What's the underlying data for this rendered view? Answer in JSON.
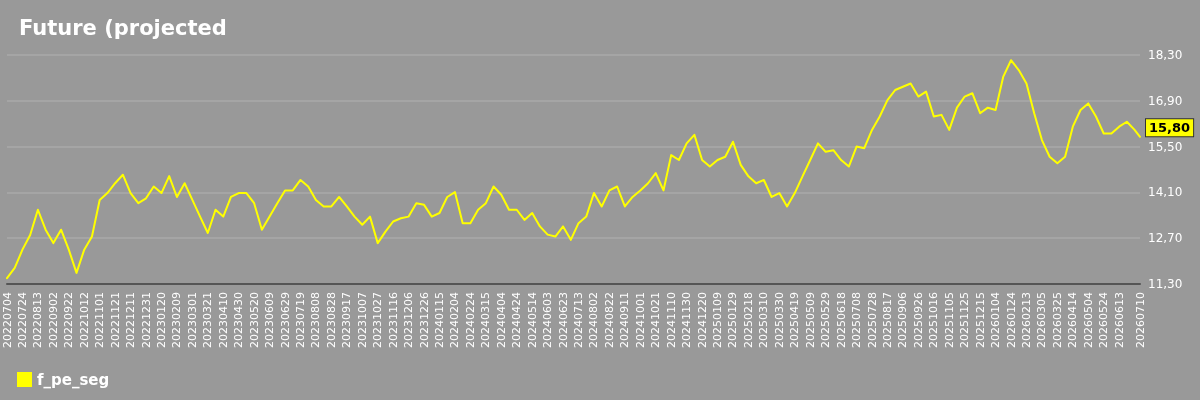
{
  "chart_data": {
    "type": "line",
    "title": "Future (projected",
    "legend": "bottom left",
    "grid": "y",
    "marker": "none",
    "line_style": "solid",
    "xlim": [
      "2022-07-04",
      "2026-07-10"
    ],
    "ylim": [
      11.3,
      18.3
    ],
    "yticks": [
      {
        "value": 11.3,
        "label": "11,30"
      },
      {
        "value": 12.7,
        "label": "12,70"
      },
      {
        "value": 14.1,
        "label": "14,10"
      },
      {
        "value": 15.5,
        "label": "15,50"
      },
      {
        "value": 16.9,
        "label": "16,90"
      },
      {
        "value": 18.3,
        "label": "18,30"
      }
    ],
    "xticks": [
      {
        "value": "2022-07-04",
        "label": "20220704"
      },
      {
        "value": "2022-07-24",
        "label": "20220724"
      },
      {
        "value": "2022-08-13",
        "label": "20220813"
      },
      {
        "value": "2022-09-02",
        "label": "20220902"
      },
      {
        "value": "2022-09-22",
        "label": "20220922"
      },
      {
        "value": "2022-10-12",
        "label": "20221012"
      },
      {
        "value": "2022-11-01",
        "label": "20221101"
      },
      {
        "value": "2022-11-21",
        "label": "20221121"
      },
      {
        "value": "2022-12-11",
        "label": "20221211"
      },
      {
        "value": "2022-12-31",
        "label": "20221231"
      },
      {
        "value": "2023-01-20",
        "label": "20230120"
      },
      {
        "value": "2023-02-09",
        "label": "20230209"
      },
      {
        "value": "2023-03-01",
        "label": "20230301"
      },
      {
        "value": "2023-03-21",
        "label": "20230321"
      },
      {
        "value": "2023-04-10",
        "label": "20230410"
      },
      {
        "value": "2023-04-30",
        "label": "20230430"
      },
      {
        "value": "2023-05-20",
        "label": "20230520"
      },
      {
        "value": "2023-06-09",
        "label": "20230609"
      },
      {
        "value": "2023-06-29",
        "label": "20230629"
      },
      {
        "value": "2023-07-19",
        "label": "20230719"
      },
      {
        "value": "2023-08-08",
        "label": "20230808"
      },
      {
        "value": "2023-08-28",
        "label": "20230828"
      },
      {
        "value": "2023-09-17",
        "label": "20230917"
      },
      {
        "value": "2023-10-07",
        "label": "20231007"
      },
      {
        "value": "2023-10-27",
        "label": "20231027"
      },
      {
        "value": "2023-11-16",
        "label": "20231116"
      },
      {
        "value": "2023-12-06",
        "label": "20231206"
      },
      {
        "value": "2023-12-26",
        "label": "20231226"
      },
      {
        "value": "2024-01-15",
        "label": "20240115"
      },
      {
        "value": "2024-02-04",
        "label": "20240204"
      },
      {
        "value": "2024-02-24",
        "label": "20240224"
      },
      {
        "value": "2024-03-15",
        "label": "20240315"
      },
      {
        "value": "2024-04-04",
        "label": "20240404"
      },
      {
        "value": "2024-04-24",
        "label": "20240424"
      },
      {
        "value": "2024-05-14",
        "label": "20240514"
      },
      {
        "value": "2024-06-03",
        "label": "20240603"
      },
      {
        "value": "2024-06-23",
        "label": "20240623"
      },
      {
        "value": "2024-07-13",
        "label": "20240713"
      },
      {
        "value": "2024-08-02",
        "label": "20240802"
      },
      {
        "value": "2024-08-22",
        "label": "20240822"
      },
      {
        "value": "2024-09-11",
        "label": "20240911"
      },
      {
        "value": "2024-10-01",
        "label": "20241001"
      },
      {
        "value": "2024-10-21",
        "label": "20241021"
      },
      {
        "value": "2024-11-10",
        "label": "20241110"
      },
      {
        "value": "2024-11-30",
        "label": "20241130"
      },
      {
        "value": "2024-12-20",
        "label": "20241220"
      },
      {
        "value": "2025-01-09",
        "label": "20250109"
      },
      {
        "value": "2025-01-29",
        "label": "20250129"
      },
      {
        "value": "2025-02-18",
        "label": "20250218"
      },
      {
        "value": "2025-03-10",
        "label": "20250310"
      },
      {
        "value": "2025-03-30",
        "label": "20250330"
      },
      {
        "value": "2025-04-19",
        "label": "20250419"
      },
      {
        "value": "2025-05-09",
        "label": "20250509"
      },
      {
        "value": "2025-05-29",
        "label": "20250529"
      },
      {
        "value": "2025-06-18",
        "label": "20250618"
      },
      {
        "value": "2025-07-08",
        "label": "20250708"
      },
      {
        "value": "2025-07-28",
        "label": "20250728"
      },
      {
        "value": "2025-08-17",
        "label": "20250817"
      },
      {
        "value": "2025-09-06",
        "label": "20250906"
      },
      {
        "value": "2025-09-26",
        "label": "20250926"
      },
      {
        "value": "2025-10-16",
        "label": "20251016"
      },
      {
        "value": "2025-11-05",
        "label": "20251105"
      },
      {
        "value": "2025-11-25",
        "label": "20251125"
      },
      {
        "value": "2025-12-15",
        "label": "20251215"
      },
      {
        "value": "2026-01-04",
        "label": "20260104"
      },
      {
        "value": "2026-01-24",
        "label": "20260124"
      },
      {
        "value": "2026-02-13",
        "label": "20260213"
      },
      {
        "value": "2026-03-05",
        "label": "20260305"
      },
      {
        "value": "2026-03-25",
        "label": "20260325"
      },
      {
        "value": "2026-04-14",
        "label": "20260414"
      },
      {
        "value": "2026-05-04",
        "label": "20260504"
      },
      {
        "value": "2026-05-24",
        "label": "20260524"
      },
      {
        "value": "2026-06-13",
        "label": "20260613"
      },
      {
        "value": "2026-07-10",
        "label": "20260710"
      }
    ],
    "x": [
      "2022-07-04",
      "2022-07-14",
      "2022-07-24",
      "2022-08-03",
      "2022-08-13",
      "2022-08-23",
      "2022-09-02",
      "2022-09-12",
      "2022-09-22",
      "2022-10-02",
      "2022-10-12",
      "2022-10-22",
      "2022-11-01",
      "2022-11-11",
      "2022-11-21",
      "2022-12-01",
      "2022-12-11",
      "2022-12-21",
      "2022-12-31",
      "2023-01-10",
      "2023-01-20",
      "2023-01-30",
      "2023-02-09",
      "2023-02-19",
      "2023-03-01",
      "2023-03-11",
      "2023-03-21",
      "2023-03-31",
      "2023-04-10",
      "2023-04-20",
      "2023-04-30",
      "2023-05-10",
      "2023-05-20",
      "2023-05-30",
      "2023-06-09",
      "2023-06-19",
      "2023-06-29",
      "2023-07-09",
      "2023-07-19",
      "2023-07-29",
      "2023-08-08",
      "2023-08-18",
      "2023-08-28",
      "2023-09-07",
      "2023-09-17",
      "2023-09-27",
      "2023-10-07",
      "2023-10-17",
      "2023-10-27",
      "2023-11-06",
      "2023-11-16",
      "2023-11-26",
      "2023-12-06",
      "2023-12-16",
      "2023-12-26",
      "2024-01-05",
      "2024-01-15",
      "2024-01-25",
      "2024-02-04",
      "2024-02-14",
      "2024-02-24",
      "2024-03-05",
      "2024-03-15",
      "2024-03-25",
      "2024-04-04",
      "2024-04-14",
      "2024-04-24",
      "2024-05-04",
      "2024-05-14",
      "2024-05-24",
      "2024-06-03",
      "2024-06-13",
      "2024-06-23",
      "2024-07-03",
      "2024-07-13",
      "2024-07-23",
      "2024-08-02",
      "2024-08-12",
      "2024-08-22",
      "2024-09-01",
      "2024-09-11",
      "2024-09-21",
      "2024-10-01",
      "2024-10-11",
      "2024-10-21",
      "2024-10-31",
      "2024-11-10",
      "2024-11-20",
      "2024-11-30",
      "2024-12-10",
      "2024-12-20",
      "2024-12-30",
      "2025-01-09",
      "2025-01-19",
      "2025-01-29",
      "2025-02-08",
      "2025-02-18",
      "2025-02-28",
      "2025-03-10",
      "2025-03-20",
      "2025-03-30",
      "2025-04-09",
      "2025-04-19",
      "2025-04-29",
      "2025-05-09",
      "2025-05-19",
      "2025-05-29",
      "2025-06-08",
      "2025-06-18",
      "2025-06-28",
      "2025-07-08",
      "2025-07-18",
      "2025-07-28",
      "2025-08-07",
      "2025-08-17",
      "2025-08-27",
      "2025-09-06",
      "2025-09-16",
      "2025-09-26",
      "2025-10-06",
      "2025-10-16",
      "2025-10-26",
      "2025-11-05",
      "2025-11-15",
      "2025-11-25",
      "2025-12-05",
      "2025-12-15",
      "2025-12-25",
      "2026-01-04",
      "2026-01-14",
      "2026-01-24",
      "2026-02-03",
      "2026-02-13",
      "2026-02-23",
      "2026-03-05",
      "2026-03-15",
      "2026-03-25",
      "2026-04-04",
      "2026-04-14",
      "2026-04-24",
      "2026-05-04",
      "2026-05-14",
      "2026-05-24",
      "2026-06-03",
      "2026-06-13",
      "2026-06-23",
      "2026-07-03",
      "2026-07-10"
    ],
    "series": [
      {
        "name": "f_pe_seg",
        "color": "#ffff00",
        "values": [
          11.48,
          11.79,
          12.35,
          12.8,
          13.57,
          12.96,
          12.55,
          12.96,
          12.35,
          11.64,
          12.35,
          12.75,
          13.87,
          14.08,
          14.38,
          14.64,
          14.08,
          13.77,
          13.92,
          14.28,
          14.08,
          14.6,
          13.96,
          14.38,
          13.87,
          13.36,
          12.86,
          13.57,
          13.36,
          13.96,
          14.08,
          14.08,
          13.77,
          12.96,
          13.36,
          13.77,
          14.16,
          14.16,
          14.48,
          14.28,
          13.87,
          13.67,
          13.67,
          13.96,
          13.67,
          13.36,
          13.11,
          13.36,
          12.55,
          12.9,
          13.21,
          13.31,
          13.36,
          13.77,
          13.72,
          13.36,
          13.47,
          13.96,
          14.11,
          13.16,
          13.16,
          13.57,
          13.77,
          14.28,
          14.03,
          13.57,
          13.57,
          13.26,
          13.47,
          13.06,
          12.81,
          12.75,
          13.06,
          12.65,
          13.16,
          13.36,
          14.08,
          13.67,
          14.16,
          14.28,
          13.67,
          13.96,
          14.16,
          14.38,
          14.69,
          14.16,
          15.24,
          15.09,
          15.6,
          15.86,
          15.09,
          14.89,
          15.09,
          15.19,
          15.65,
          14.94,
          14.59,
          14.38,
          14.48,
          13.96,
          14.08,
          13.67,
          14.08,
          14.59,
          15.09,
          15.6,
          15.34,
          15.39,
          15.09,
          14.89,
          15.5,
          15.45,
          16.01,
          16.42,
          16.92,
          17.23,
          17.33,
          17.43,
          17.03,
          17.18,
          16.42,
          16.47,
          16.01,
          16.69,
          17.03,
          17.13,
          16.52,
          16.69,
          16.62,
          17.64,
          18.14,
          17.84,
          17.43,
          16.52,
          15.7,
          15.19,
          14.99,
          15.19,
          16.11,
          16.62,
          16.82,
          16.42,
          15.9,
          15.9,
          16.11,
          16.26,
          16.01,
          15.8
        ]
      }
    ],
    "annotations": [
      {
        "text": "15,80",
        "x": "2026-07-10",
        "y": 15.8
      }
    ]
  }
}
